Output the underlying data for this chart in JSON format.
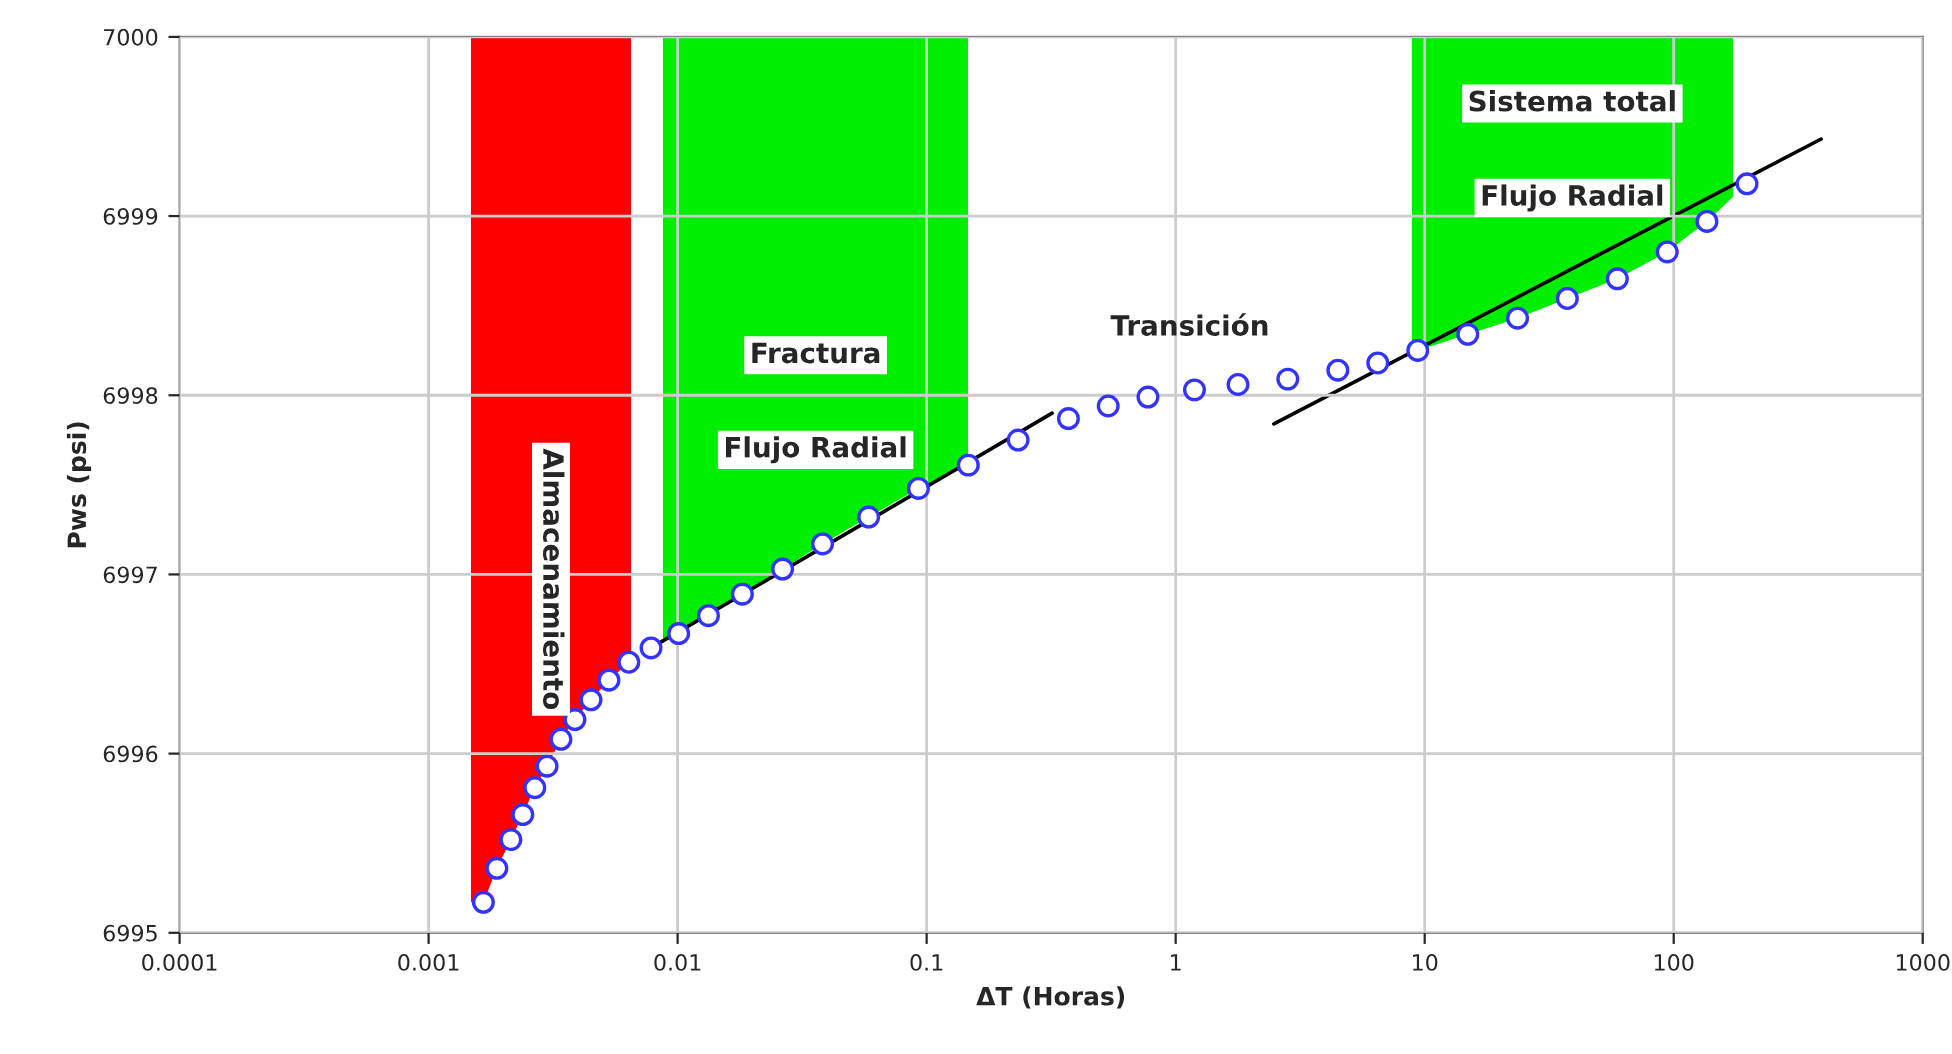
{
  "chart_data": {
    "type": "scatter",
    "xlabel": "ΔT (Horas)",
    "ylabel": "Pws (psi)",
    "log": "x",
    "xlim": [
      0.0001,
      1000
    ],
    "xticks": [
      0.0001,
      0.001,
      0.01,
      0.1,
      1,
      10,
      100,
      1000
    ],
    "ylim": [
      6995,
      7000
    ],
    "yticks": [
      6995,
      6996,
      6997,
      6998,
      6999,
      7000
    ],
    "grid": true,
    "legend": false,
    "series": [
      {
        "color": "#3333ff",
        "marker": "circle",
        "x": [
          0.00166,
          0.00188,
          0.00214,
          0.00239,
          0.00267,
          0.00299,
          0.0034,
          0.00387,
          0.00449,
          0.0053,
          0.00637,
          0.00782,
          0.0101,
          0.0133,
          0.0182,
          0.0264,
          0.0382,
          0.0585,
          0.0927,
          0.147,
          0.233,
          0.371,
          0.536,
          0.774,
          1.19,
          1.78,
          2.82,
          4.48,
          6.48,
          9.38,
          14.9,
          23.6,
          37.4,
          59.4,
          94.2,
          136,
          197
        ],
        "values": [
          6995.17,
          6995.36,
          6995.52,
          6995.66,
          6995.81,
          6995.93,
          6996.08,
          6996.19,
          6996.3,
          6996.41,
          6996.51,
          6996.59,
          6996.67,
          6996.77,
          6996.89,
          6997.03,
          6997.17,
          6997.32,
          6997.48,
          6997.61,
          6997.75,
          6997.87,
          6997.94,
          6997.99,
          6998.03,
          6998.06,
          6998.09,
          6998.14,
          6998.18,
          6998.25,
          6998.34,
          6998.43,
          6998.54,
          6998.65,
          6998.8,
          6998.97,
          6999.18
        ]
      },
      {
        "type": "line",
        "color": "#000000",
        "x": [
          0.00782,
          0.319
        ],
        "values": [
          6996.59,
          6997.9
        ]
      },
      {
        "type": "line",
        "color": "#000000",
        "x": [
          2.48,
          391
        ],
        "values": [
          6997.84,
          6999.43
        ]
      }
    ],
    "bands": [
      {
        "axis": "x",
        "from": 0.00148,
        "to": 0.0065,
        "color": "#ff0000",
        "label": "Almacenamiento"
      },
      {
        "axis": "x",
        "from": 0.00873,
        "to": 0.147,
        "color": "#00ee00",
        "label": "Fractura\nFlujo Radial"
      },
      {
        "axis": "x",
        "from": 8.87,
        "to": 173,
        "color": "#00ee00",
        "label": "Sistema total\nFlujo Radial"
      }
    ],
    "annotations": [
      "Transición"
    ]
  }
}
